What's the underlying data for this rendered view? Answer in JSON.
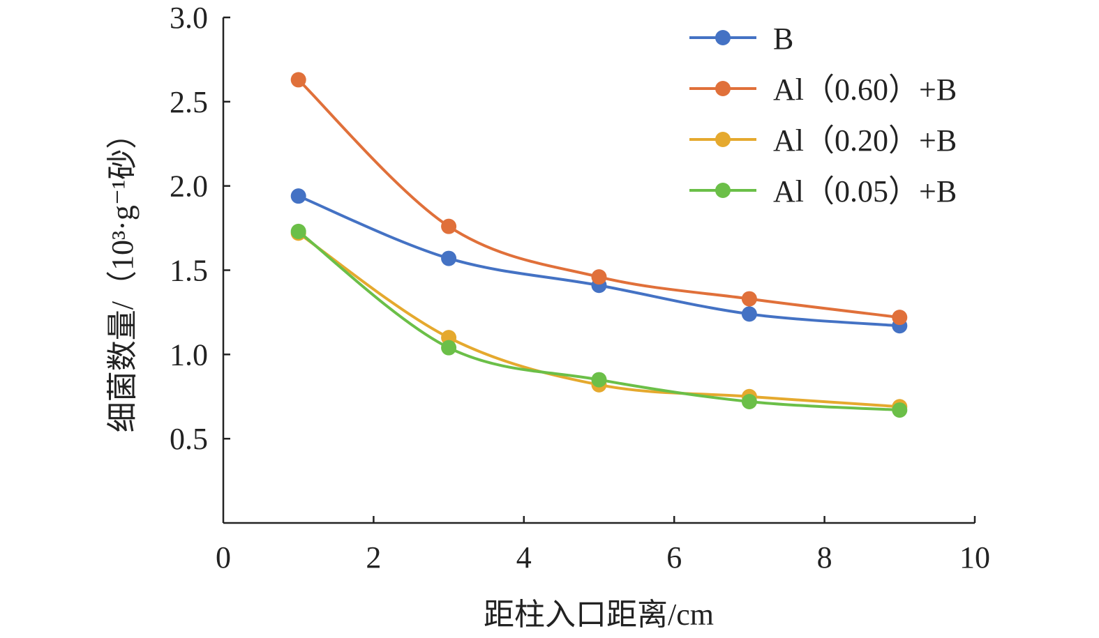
{
  "chart_data": {
    "type": "line",
    "smooth": true,
    "xlabel": "距柱入口距离/cm",
    "ylabel": "细菌数量/（10³·g⁻¹砂）",
    "xlim": [
      0,
      10
    ],
    "ylim": [
      0,
      3.0
    ],
    "x_ticks": [
      "0",
      "2",
      "4",
      "6",
      "8",
      "10"
    ],
    "y_ticks": [
      "0.5",
      "1.0",
      "1.5",
      "2.0",
      "2.5",
      "3.0"
    ],
    "grid": false,
    "legend_position": "top-right",
    "x": [
      1,
      3,
      5,
      7,
      9
    ],
    "series": [
      {
        "name": "B",
        "color": "#4472C4",
        "values": [
          1.94,
          1.57,
          1.41,
          1.24,
          1.17
        ]
      },
      {
        "name": "Al（0.60）+B",
        "color": "#E0703A",
        "values": [
          2.63,
          1.76,
          1.46,
          1.33,
          1.22
        ]
      },
      {
        "name": "Al（0.20）+B",
        "color": "#E5A92E",
        "values": [
          1.72,
          1.1,
          0.82,
          0.75,
          0.69
        ]
      },
      {
        "name": "Al（0.05）+B",
        "color": "#6BBF48",
        "values": [
          1.73,
          1.04,
          0.85,
          0.72,
          0.67
        ]
      }
    ]
  }
}
